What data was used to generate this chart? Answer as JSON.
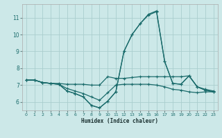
{
  "xlabel": "Humidex (Indice chaleur)",
  "background_color": "#cce8e8",
  "grid_color": "#aacece",
  "line_color": "#1a6b6b",
  "ylim": [
    5.5,
    11.8
  ],
  "xlim": [
    -0.5,
    23.5
  ],
  "yticks": [
    6,
    7,
    8,
    9,
    10,
    11
  ],
  "xticks": [
    0,
    1,
    2,
    3,
    4,
    5,
    6,
    7,
    8,
    9,
    10,
    11,
    12,
    13,
    14,
    15,
    16,
    17,
    18,
    19,
    20,
    21,
    22,
    23
  ],
  "lines": [
    [
      7.3,
      7.3,
      7.15,
      7.1,
      7.1,
      7.05,
      7.05,
      7.05,
      7.0,
      7.0,
      7.5,
      7.4,
      7.4,
      7.45,
      7.5,
      7.5,
      7.5,
      7.5,
      7.5,
      7.5,
      7.55,
      6.9,
      6.75,
      6.65
    ],
    [
      7.3,
      7.3,
      7.15,
      7.1,
      7.05,
      6.8,
      6.65,
      6.5,
      6.3,
      6.1,
      6.55,
      7.0,
      7.05,
      7.05,
      7.05,
      7.05,
      7.0,
      6.9,
      6.75,
      6.7,
      6.6,
      6.55,
      6.6,
      6.6
    ],
    [
      7.3,
      7.3,
      7.15,
      7.1,
      7.05,
      6.65,
      6.5,
      6.3,
      5.8,
      5.65,
      6.05,
      6.6,
      9.0,
      10.0,
      10.65,
      11.15,
      11.35,
      8.4,
      7.1,
      7.05,
      7.55,
      6.9,
      6.7,
      6.6
    ],
    [
      7.3,
      7.3,
      7.15,
      7.1,
      7.05,
      6.65,
      6.5,
      6.3,
      5.8,
      5.65,
      6.05,
      6.6,
      9.0,
      10.0,
      10.65,
      11.2,
      11.4,
      8.4,
      7.1,
      7.05,
      7.55,
      6.9,
      6.7,
      6.6
    ]
  ]
}
